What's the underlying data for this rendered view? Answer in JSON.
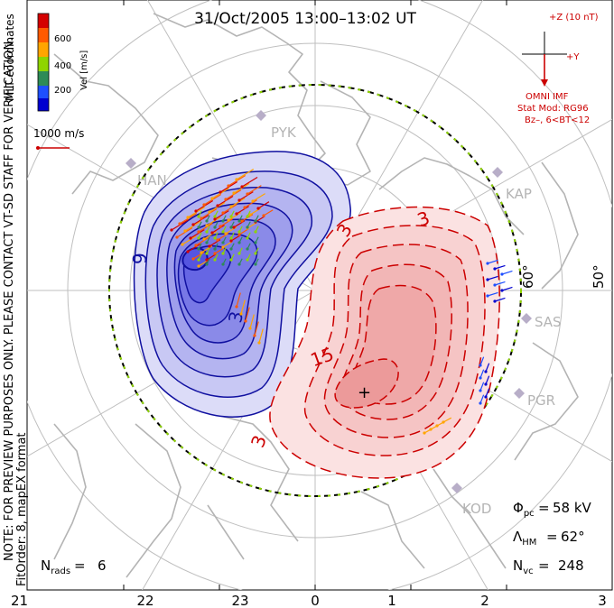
{
  "title": "31/Oct/2005 13:00–13:02 UT",
  "side_note_line1": "NOTE: FOR PREVIEW PURPOSES ONLY. PLEASE CONTACT VT-SD STAFF FOR VERIFICATION.",
  "side_note_line2": "FitOrder: 8, mapEX format",
  "mlt_coordinates": "MLT coordinates",
  "color_scale": {
    "label": "Vel [m/s]",
    "ticks": [
      "600",
      "400",
      "200"
    ],
    "colors": [
      "#d40000",
      "#ff5a00",
      "#ffa500",
      "#8fd400",
      "#2e8b57",
      "#1e4fff",
      "#0000d0"
    ]
  },
  "vector_scale_label": "1000 m/s",
  "imf": {
    "z_label": "+Z (10 nT)",
    "y_label": "+Y",
    "source": "OMNI IMF",
    "stat_mod": "Stat Mod: RG96",
    "condition": "Bz–, 6<BT<12"
  },
  "stations": [
    "PYK",
    "HAN",
    "KAP",
    "SAS",
    "PGR",
    "KOD"
  ],
  "latitude_labels": [
    "60°",
    "50°"
  ],
  "contour_labels": {
    "negative": [
      "9",
      "3"
    ],
    "positive": [
      "3",
      "15",
      "3"
    ]
  },
  "stats": {
    "phi_value": "58 kV",
    "lambda_value": "62°",
    "nvc_value": "248",
    "nrads_value": "6"
  },
  "mlt_axis": [
    "21",
    "22",
    "23",
    "0",
    "1",
    "2",
    "3"
  ]
}
